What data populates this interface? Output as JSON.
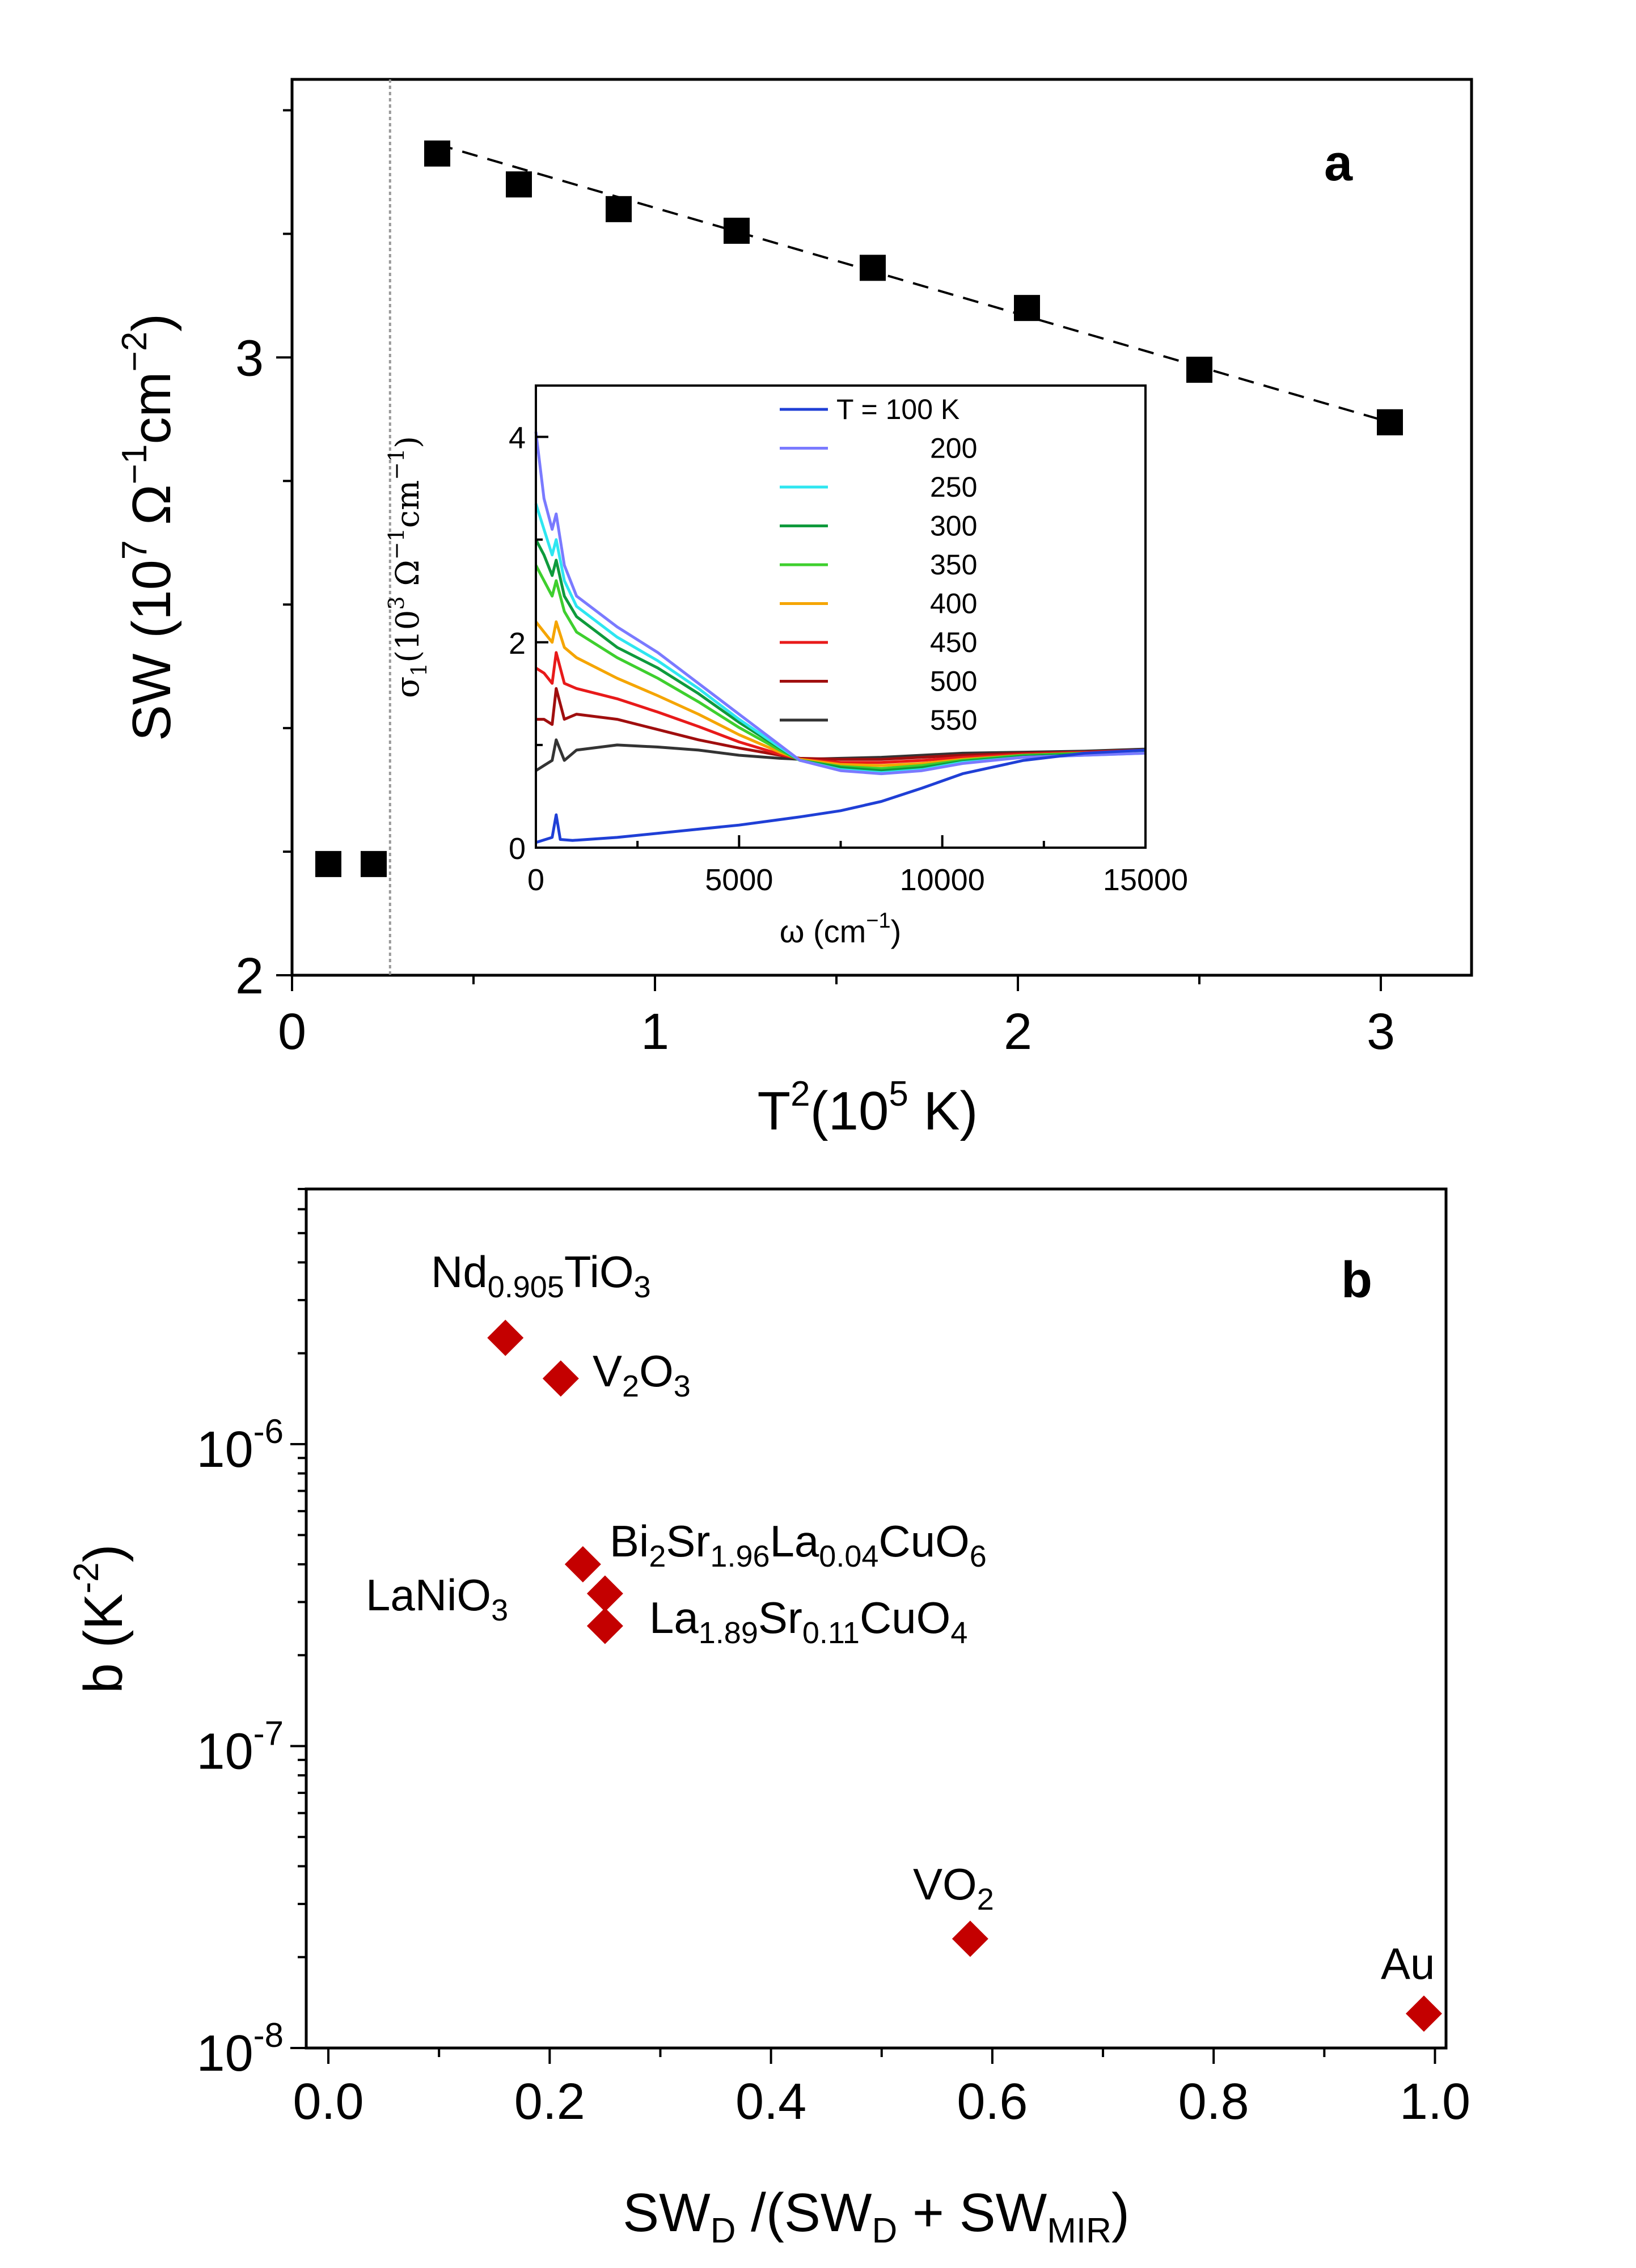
{
  "chart_data": [
    {
      "panel": "a",
      "type": "scatter",
      "xlabel": {
        "base": "T",
        "sup": "2",
        "rest_pre": "(10",
        "rest_sup": "5",
        "rest_post": " K)"
      },
      "ylabel": {
        "pre": "SW (10",
        "sup1": "7",
        "mid": " Ω",
        "sup2": "−1",
        "mid2": "cm",
        "sup3": "−2",
        "post": ")"
      },
      "xlim": [
        0,
        3.25
      ],
      "ylim": [
        2,
        3.45
      ],
      "x_ticks": [
        0,
        1,
        2,
        3
      ],
      "x_tick_labels": [
        "0",
        "1",
        "2",
        "3"
      ],
      "y_ticks": [
        2,
        3
      ],
      "y_tick_labels": [
        "2",
        "3"
      ],
      "points": [
        {
          "x": 0.1,
          "y": 2.18
        },
        {
          "x": 0.225,
          "y": 2.18
        },
        {
          "x": 0.4,
          "y": 3.33
        },
        {
          "x": 0.625,
          "y": 3.28
        },
        {
          "x": 0.9,
          "y": 3.24
        },
        {
          "x": 1.225,
          "y": 3.205
        },
        {
          "x": 1.6,
          "y": 3.145
        },
        {
          "x": 2.025,
          "y": 3.08
        },
        {
          "x": 2.5,
          "y": 2.98
        },
        {
          "x": 3.025,
          "y": 2.895
        }
      ],
      "fit_line": {
        "x": [
          0.4,
          3.025
        ],
        "y": [
          3.345,
          2.895
        ],
        "style": "dashed"
      },
      "vline_x": 0.27,
      "inset": {
        "type": "line",
        "xlabel": {
          "pre": "ω (cm",
          "sup": "−1",
          "post": ")"
        },
        "ylabel": {
          "pre": "σ",
          "sub": "1",
          "mid": "(10",
          "sup1": "3",
          "mid2": " Ω",
          "sup2": "−1",
          "mid3": "cm",
          "sup3": "−1",
          "post": ")"
        },
        "xlim": [
          0,
          15000
        ],
        "ylim": [
          0,
          4.5
        ],
        "x_ticks": [
          0,
          5000,
          10000,
          15000
        ],
        "x_tick_labels": [
          "0",
          "5000",
          "10000",
          "15000"
        ],
        "y_ticks": [
          0,
          2,
          4
        ],
        "y_tick_labels": [
          "0",
          "2",
          "4"
        ],
        "legend": [
          "T = 100 K",
          "200",
          "250",
          "300",
          "350",
          "400",
          "450",
          "500",
          "550"
        ],
        "series": [
          {
            "name": "T = 100 K",
            "color": "#1f3fd6",
            "x": [
              0,
              400,
              500,
              600,
              900,
              2000,
              4000,
              5000,
              6500,
              7500,
              8500,
              9500,
              10500,
              12000,
              13500,
              15000
            ],
            "y": [
              0.05,
              0.1,
              0.32,
              0.08,
              0.07,
              0.1,
              0.18,
              0.22,
              0.3,
              0.36,
              0.45,
              0.58,
              0.72,
              0.85,
              0.92,
              0.95
            ]
          },
          {
            "name": "200",
            "color": "#7a7aff",
            "x": [
              0,
              200,
              400,
              500,
              700,
              1000,
              2000,
              3000,
              4000,
              5000,
              6000,
              6500,
              7500,
              8500,
              9500,
              10500,
              12000,
              13500,
              15000
            ],
            "y": [
              4.05,
              3.4,
              3.1,
              3.25,
              2.75,
              2.45,
              2.15,
              1.9,
              1.6,
              1.3,
              1.0,
              0.85,
              0.75,
              0.72,
              0.75,
              0.82,
              0.88,
              0.9,
              0.92
            ]
          },
          {
            "name": "250",
            "color": "#2ee6f0",
            "x": [
              0,
              200,
              400,
              500,
              700,
              1000,
              2000,
              3000,
              4000,
              5000,
              6000,
              6500,
              7500,
              8500,
              9500,
              10500,
              12000,
              13500,
              15000
            ],
            "y": [
              3.35,
              3.1,
              2.85,
              3.0,
              2.6,
              2.35,
              2.05,
              1.82,
              1.55,
              1.25,
              0.98,
              0.85,
              0.76,
              0.73,
              0.76,
              0.83,
              0.88,
              0.9,
              0.92
            ]
          },
          {
            "name": "300",
            "color": "#0e9a3c",
            "x": [
              0,
              200,
              400,
              500,
              700,
              1000,
              2000,
              3000,
              4000,
              5000,
              6000,
              6500,
              7500,
              8500,
              9500,
              10500,
              12000,
              13500,
              15000
            ],
            "y": [
              3.0,
              2.85,
              2.65,
              2.8,
              2.45,
              2.25,
              1.95,
              1.75,
              1.5,
              1.22,
              0.97,
              0.85,
              0.78,
              0.75,
              0.78,
              0.84,
              0.89,
              0.91,
              0.93
            ]
          },
          {
            "name": "350",
            "color": "#3ecf2e",
            "x": [
              0,
              200,
              400,
              500,
              700,
              1000,
              2000,
              3000,
              4000,
              5000,
              6000,
              6500,
              7500,
              8500,
              9500,
              10500,
              12000,
              13500,
              15000
            ],
            "y": [
              2.75,
              2.6,
              2.45,
              2.6,
              2.3,
              2.1,
              1.85,
              1.65,
              1.42,
              1.17,
              0.95,
              0.85,
              0.79,
              0.77,
              0.8,
              0.85,
              0.9,
              0.92,
              0.94
            ]
          },
          {
            "name": "400",
            "color": "#f5a500",
            "x": [
              0,
              200,
              400,
              500,
              700,
              1000,
              2000,
              3000,
              4000,
              5000,
              6000,
              6500,
              7500,
              8500,
              9500,
              10500,
              12000,
              13500,
              15000
            ],
            "y": [
              2.2,
              2.1,
              2.0,
              2.2,
              1.95,
              1.85,
              1.65,
              1.48,
              1.3,
              1.1,
              0.93,
              0.86,
              0.81,
              0.8,
              0.82,
              0.86,
              0.9,
              0.92,
              0.94
            ]
          },
          {
            "name": "450",
            "color": "#e81a1a",
            "x": [
              0,
              200,
              400,
              500,
              700,
              1000,
              2000,
              3000,
              4000,
              5000,
              6000,
              6500,
              7500,
              8500,
              9500,
              10500,
              12000,
              13500,
              15000
            ],
            "y": [
              1.75,
              1.7,
              1.6,
              1.9,
              1.6,
              1.55,
              1.45,
              1.32,
              1.18,
              1.03,
              0.91,
              0.86,
              0.83,
              0.83,
              0.85,
              0.88,
              0.91,
              0.93,
              0.95
            ]
          },
          {
            "name": "500",
            "color": "#a00e0e",
            "x": [
              0,
              200,
              400,
              500,
              700,
              1000,
              2000,
              3000,
              4000,
              5000,
              6000,
              6500,
              7500,
              8500,
              9500,
              10500,
              12000,
              13500,
              15000
            ],
            "y": [
              1.25,
              1.25,
              1.2,
              1.55,
              1.25,
              1.3,
              1.25,
              1.15,
              1.05,
              0.97,
              0.9,
              0.87,
              0.86,
              0.86,
              0.88,
              0.9,
              0.92,
              0.93,
              0.95
            ]
          },
          {
            "name": "550",
            "color": "#333333",
            "x": [
              0,
              200,
              400,
              500,
              700,
              1000,
              2000,
              3000,
              4000,
              5000,
              6000,
              6500,
              7500,
              8500,
              9500,
              10500,
              12000,
              13500,
              15000
            ],
            "y": [
              0.75,
              0.8,
              0.85,
              1.05,
              0.85,
              0.95,
              1.0,
              0.98,
              0.95,
              0.9,
              0.87,
              0.86,
              0.87,
              0.88,
              0.9,
              0.92,
              0.93,
              0.94,
              0.96
            ]
          }
        ]
      }
    },
    {
      "panel": "b",
      "type": "scatter",
      "xlabel": {
        "t1": "SW",
        "s1": "D",
        "t2": " /(SW",
        "s2": "D",
        "t3": " + SW",
        "s3": "MIR",
        "t4": ")"
      },
      "ylabel": {
        "pre": "b (K",
        "sup": "-2",
        "post": ")"
      },
      "xlim": [
        -0.02,
        1.01
      ],
      "ylim_log": [
        1e-08,
        7e-06
      ],
      "y_scale": "log",
      "x_ticks": [
        0.0,
        0.2,
        0.4,
        0.6,
        0.8,
        1.0
      ],
      "x_tick_labels": [
        "0.0",
        "0.2",
        "0.4",
        "0.6",
        "0.8",
        "1.0"
      ],
      "y_major_ticks": [
        1e-08,
        1e-07,
        1e-06
      ],
      "y_tick_labels": [
        {
          "base": "10",
          "exp": "-8"
        },
        {
          "base": "10",
          "exp": "-7"
        },
        {
          "base": "10",
          "exp": "-6"
        }
      ],
      "points": [
        {
          "x": 0.16,
          "y": 2.25e-06,
          "label": {
            "main": "Nd",
            "sub1": "0.905",
            "mid": "TiO",
            "sub2": "3"
          }
        },
        {
          "x": 0.21,
          "y": 1.65e-06,
          "label": {
            "main": "V",
            "sub1": "2",
            "mid": "O",
            "sub2": "3"
          }
        },
        {
          "x": 0.23,
          "y": 4e-07,
          "label": {
            "main": "Bi",
            "sub1": "2",
            "mid": "Sr",
            "sub2": "1.96",
            "mid2": "La",
            "sub3": "0.04",
            "mid3": "CuO",
            "sub4": "6"
          }
        },
        {
          "x": 0.25,
          "y": 3.2e-07,
          "label": {
            "main": "LaNiO",
            "sub1": "3"
          }
        },
        {
          "x": 0.25,
          "y": 2.5e-07,
          "label": {
            "main": "La",
            "sub1": "1.89",
            "mid": "Sr",
            "sub2": "0.11",
            "mid2": "CuO",
            "sub3": "4"
          }
        },
        {
          "x": 0.58,
          "y": 2.3e-08,
          "label": {
            "main": "VO",
            "sub1": "2"
          }
        },
        {
          "x": 0.99,
          "y": 1.3e-08,
          "label": {
            "main": "Au"
          }
        }
      ],
      "marker_color": "#c40000"
    }
  ],
  "panel_letters": {
    "a": "a",
    "b": "b"
  }
}
